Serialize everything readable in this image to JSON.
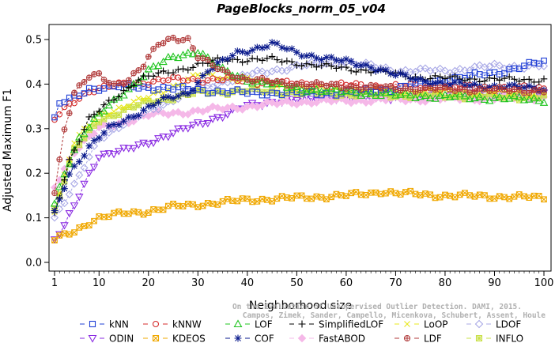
{
  "chart_data": {
    "type": "line",
    "title": "PageBlocks_norm_05_v04",
    "xlabel": "Neighborhood size",
    "ylabel": "Adjusted Maximum F1",
    "xlim": [
      1,
      100
    ],
    "ylim": [
      0,
      0.55
    ],
    "x_ticks": [
      1,
      10,
      20,
      30,
      40,
      50,
      60,
      70,
      80,
      90,
      100
    ],
    "y_ticks": [
      0.0,
      0.1,
      0.2,
      0.3,
      0.4,
      0.5
    ],
    "x_tick_labels": [
      "1",
      "10",
      "20",
      "30",
      "40",
      "50",
      "60",
      "70",
      "80",
      "90",
      "100"
    ],
    "y_tick_labels": [
      "0.0",
      "0.1",
      "0.2",
      "0.3",
      "0.4",
      "0.5"
    ],
    "legend_position": "bottom",
    "credit_lines": [
      "On the Evaluation of Unsupervised Outlier Detection. DAMI, 2015.",
      "Campos, Zimek, Sander, Campello, Micenkova, Schubert, Assent, Houle"
    ],
    "series": [
      {
        "name": "kNN",
        "color": "#1f3fd6",
        "marker": "square",
        "knots": [
          [
            1,
            0.32
          ],
          [
            2,
            0.355
          ],
          [
            5,
            0.37
          ],
          [
            8,
            0.39
          ],
          [
            15,
            0.395
          ],
          [
            25,
            0.39
          ],
          [
            40,
            0.38
          ],
          [
            60,
            0.38
          ],
          [
            70,
            0.39
          ],
          [
            80,
            0.41
          ],
          [
            90,
            0.425
          ],
          [
            100,
            0.45
          ]
        ]
      },
      {
        "name": "kNNW",
        "color": "#d42a2a",
        "marker": "circle",
        "knots": [
          [
            1,
            0.32
          ],
          [
            4,
            0.355
          ],
          [
            8,
            0.385
          ],
          [
            15,
            0.4
          ],
          [
            25,
            0.41
          ],
          [
            35,
            0.41
          ],
          [
            50,
            0.4
          ],
          [
            70,
            0.395
          ],
          [
            100,
            0.39
          ]
        ]
      },
      {
        "name": "LOF",
        "color": "#1fc41f",
        "marker": "triangle-up",
        "knots": [
          [
            1,
            0.13
          ],
          [
            3,
            0.2
          ],
          [
            6,
            0.28
          ],
          [
            10,
            0.33
          ],
          [
            15,
            0.38
          ],
          [
            20,
            0.43
          ],
          [
            25,
            0.46
          ],
          [
            30,
            0.475
          ],
          [
            35,
            0.43
          ],
          [
            40,
            0.41
          ],
          [
            50,
            0.39
          ],
          [
            70,
            0.375
          ],
          [
            100,
            0.365
          ]
        ]
      },
      {
        "name": "SimplifiedLOF",
        "color": "#000000",
        "marker": "plus",
        "knots": [
          [
            1,
            0.11
          ],
          [
            4,
            0.23
          ],
          [
            8,
            0.32
          ],
          [
            12,
            0.36
          ],
          [
            18,
            0.41
          ],
          [
            25,
            0.43
          ],
          [
            35,
            0.455
          ],
          [
            45,
            0.455
          ],
          [
            55,
            0.44
          ],
          [
            65,
            0.43
          ],
          [
            75,
            0.415
          ],
          [
            90,
            0.41
          ],
          [
            100,
            0.41
          ]
        ]
      },
      {
        "name": "LoOP",
        "color": "#e8e81a",
        "marker": "x",
        "knots": [
          [
            1,
            0.12
          ],
          [
            5,
            0.27
          ],
          [
            10,
            0.33
          ],
          [
            20,
            0.37
          ],
          [
            30,
            0.42
          ],
          [
            40,
            0.41
          ],
          [
            50,
            0.39
          ],
          [
            70,
            0.385
          ],
          [
            100,
            0.38
          ]
        ]
      },
      {
        "name": "LDOF",
        "color": "#a8a8e6",
        "marker": "diamond",
        "knots": [
          [
            1,
            0.1
          ],
          [
            5,
            0.17
          ],
          [
            10,
            0.28
          ],
          [
            20,
            0.34
          ],
          [
            30,
            0.39
          ],
          [
            40,
            0.42
          ],
          [
            50,
            0.44
          ],
          [
            60,
            0.45
          ],
          [
            70,
            0.43
          ],
          [
            80,
            0.43
          ],
          [
            90,
            0.44
          ],
          [
            100,
            0.44
          ]
        ]
      },
      {
        "name": "ODIN",
        "color": "#8a2be2",
        "marker": "triangle-down",
        "knots": [
          [
            1,
            0.05
          ],
          [
            3,
            0.08
          ],
          [
            6,
            0.15
          ],
          [
            8,
            0.2
          ],
          [
            10,
            0.24
          ],
          [
            15,
            0.25
          ],
          [
            20,
            0.27
          ],
          [
            25,
            0.29
          ],
          [
            30,
            0.31
          ],
          [
            35,
            0.33
          ],
          [
            40,
            0.35
          ],
          [
            45,
            0.36
          ],
          [
            50,
            0.365
          ],
          [
            60,
            0.37
          ],
          [
            70,
            0.37
          ],
          [
            80,
            0.375
          ],
          [
            90,
            0.375
          ],
          [
            100,
            0.375
          ]
        ]
      },
      {
        "name": "KDEOS",
        "color": "#f0a800",
        "marker": "boxtimes",
        "knots": [
          [
            1,
            0.05
          ],
          [
            5,
            0.07
          ],
          [
            8,
            0.09
          ],
          [
            10,
            0.1
          ],
          [
            15,
            0.11
          ],
          [
            20,
            0.115
          ],
          [
            25,
            0.125
          ],
          [
            30,
            0.13
          ],
          [
            35,
            0.135
          ],
          [
            40,
            0.14
          ],
          [
            50,
            0.145
          ],
          [
            60,
            0.15
          ],
          [
            65,
            0.155
          ],
          [
            67,
            0.16
          ],
          [
            70,
            0.155
          ],
          [
            80,
            0.15
          ],
          [
            90,
            0.148
          ],
          [
            100,
            0.145
          ]
        ]
      },
      {
        "name": "COF",
        "color": "#0a1a8c",
        "marker": "asterisk",
        "knots": [
          [
            1,
            0.11
          ],
          [
            4,
            0.2
          ],
          [
            8,
            0.26
          ],
          [
            12,
            0.3
          ],
          [
            17,
            0.33
          ],
          [
            22,
            0.36
          ],
          [
            28,
            0.38
          ],
          [
            32,
            0.43
          ],
          [
            38,
            0.47
          ],
          [
            45,
            0.49
          ],
          [
            50,
            0.47
          ],
          [
            55,
            0.46
          ],
          [
            60,
            0.45
          ],
          [
            65,
            0.44
          ],
          [
            70,
            0.42
          ],
          [
            80,
            0.4
          ],
          [
            100,
            0.39
          ]
        ]
      },
      {
        "name": "FastABOD",
        "color": "#f5b8e8",
        "marker": "diamond-filled",
        "knots": [
          [
            1,
            0.17
          ],
          [
            5,
            0.25
          ],
          [
            10,
            0.3
          ],
          [
            20,
            0.33
          ],
          [
            30,
            0.34
          ],
          [
            40,
            0.35
          ],
          [
            50,
            0.36
          ],
          [
            70,
            0.365
          ],
          [
            100,
            0.37
          ]
        ]
      },
      {
        "name": "LDF",
        "color": "#b03a3a",
        "marker": "circle-plus",
        "knots": [
          [
            1,
            0.16
          ],
          [
            3,
            0.3
          ],
          [
            5,
            0.38
          ],
          [
            8,
            0.415
          ],
          [
            10,
            0.42
          ],
          [
            13,
            0.4
          ],
          [
            16,
            0.41
          ],
          [
            19,
            0.44
          ],
          [
            22,
            0.49
          ],
          [
            25,
            0.505
          ],
          [
            28,
            0.5
          ],
          [
            30,
            0.46
          ],
          [
            35,
            0.43
          ],
          [
            40,
            0.41
          ],
          [
            50,
            0.4
          ],
          [
            70,
            0.39
          ],
          [
            100,
            0.385
          ]
        ]
      },
      {
        "name": "INFLO",
        "color": "#c9e04a",
        "marker": "box-star",
        "knots": [
          [
            1,
            0.12
          ],
          [
            5,
            0.25
          ],
          [
            10,
            0.32
          ],
          [
            20,
            0.36
          ],
          [
            30,
            0.38
          ],
          [
            40,
            0.385
          ],
          [
            50,
            0.38
          ],
          [
            70,
            0.375
          ],
          [
            100,
            0.37
          ]
        ]
      }
    ],
    "legend_order": [
      "kNN",
      "kNNW",
      "LOF",
      "SimplifiedLOF",
      "LoOP",
      "LDOF",
      "ODIN",
      "KDEOS",
      "COF",
      "FastABOD",
      "LDF",
      "INFLO"
    ]
  }
}
